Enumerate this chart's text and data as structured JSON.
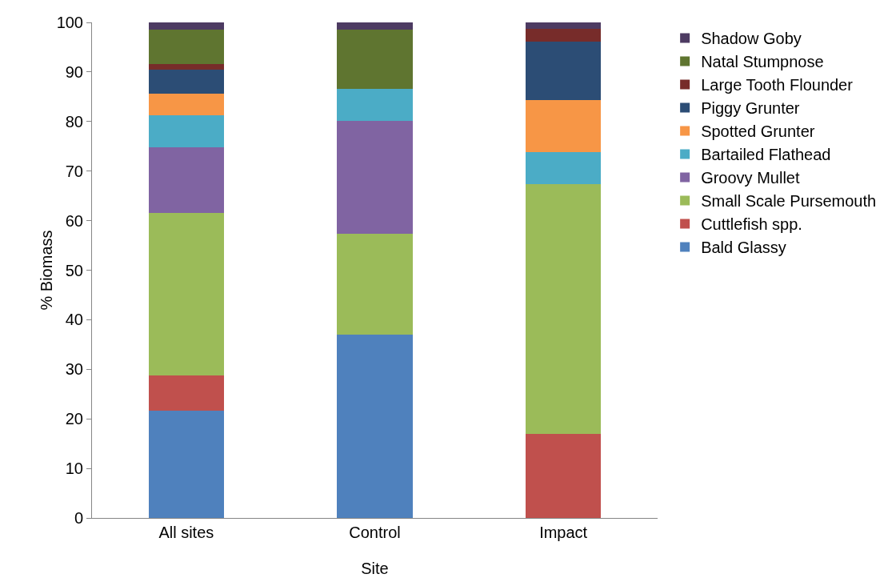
{
  "chart_data": {
    "type": "bar",
    "stacked": true,
    "xlabel": "Site",
    "ylabel": "% Biomass",
    "categories": [
      "All sites",
      "Control",
      "Impact"
    ],
    "series": [
      {
        "name": "Bald Glassy",
        "color": "#4f81bd",
        "values": [
          21.6,
          37.0,
          0
        ]
      },
      {
        "name": "Cuttlefish spp.",
        "color": "#c0504d",
        "values": [
          7.2,
          0,
          17.0
        ]
      },
      {
        "name": "Small Scale Pursemouth",
        "color": "#9bbb59",
        "values": [
          32.8,
          20.4,
          50.4
        ]
      },
      {
        "name": "Groovy Mullet",
        "color": "#8064a2",
        "values": [
          13.2,
          22.7,
          0
        ]
      },
      {
        "name": "Bartailed Flathead",
        "color": "#4bacc6",
        "values": [
          6.5,
          6.5,
          6.4
        ]
      },
      {
        "name": "Spotted Grunter",
        "color": "#f79646",
        "values": [
          4.3,
          0,
          10.5
        ]
      },
      {
        "name": "Piggy Grunter",
        "color": "#2c4d75",
        "values": [
          4.9,
          0,
          11.8
        ]
      },
      {
        "name": "Large Tooth Flounder",
        "color": "#772c2a",
        "values": [
          1.1,
          0,
          2.6
        ]
      },
      {
        "name": "Natal Stumpnose",
        "color": "#5f7530",
        "values": [
          6.9,
          11.9,
          0
        ]
      },
      {
        "name": "Shadow Goby",
        "color": "#4d3b62",
        "values": [
          1.5,
          1.5,
          1.3
        ]
      }
    ],
    "ylim": [
      0,
      100
    ],
    "yticks": [
      0,
      10,
      20,
      30,
      40,
      50,
      60,
      70,
      80,
      90,
      100
    ],
    "grid": false,
    "legend": "right"
  }
}
